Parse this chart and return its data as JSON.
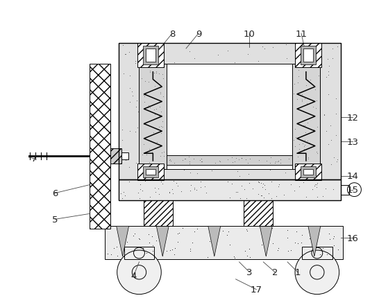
{
  "bg_color": "#ffffff",
  "line_color": "#000000",
  "fig_width": 5.46,
  "fig_height": 4.31,
  "dpi": 100,
  "dot_color": "#888888",
  "hatch_gray": "#cccccc"
}
